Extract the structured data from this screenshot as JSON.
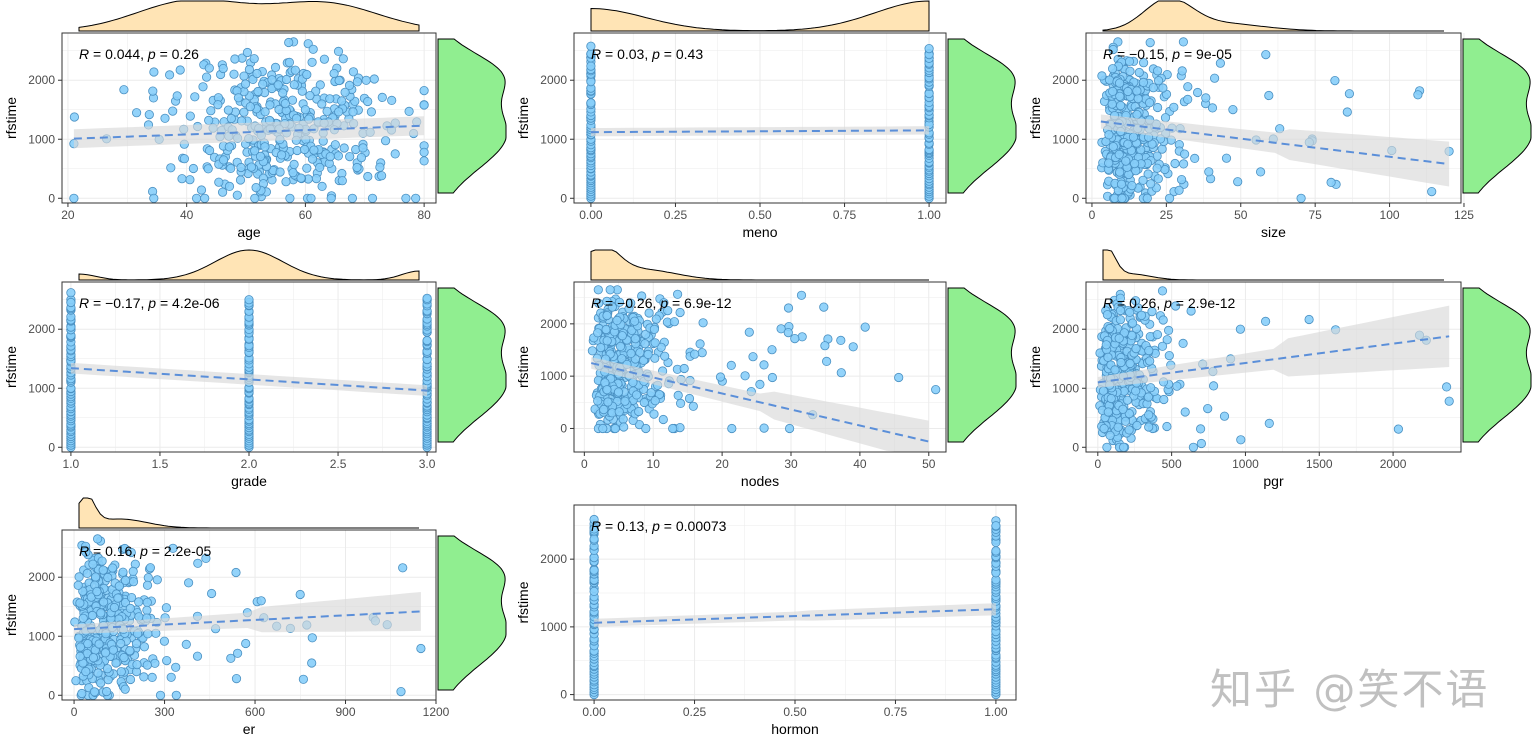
{
  "figure": {
    "y_label": "rfstime",
    "watermark": "知乎 @笑不语"
  },
  "colors": {
    "point_fill": "#87CEFA",
    "point_stroke": "#4A90C2",
    "trend_line": "#5B8FD9",
    "ribbon": "#D9D9D9",
    "top_density": "#FFE4B5",
    "right_density": "#90EE90",
    "grid": "#EBEBEB",
    "panel_border": "#333333"
  },
  "chart_data": [
    {
      "type": "scatter",
      "variable": "age",
      "xlabel": "age",
      "ylabel": "rfstime",
      "xlim": [
        19,
        82
      ],
      "ylim": [
        -80,
        2800
      ],
      "xticks": [
        20,
        40,
        60,
        80
      ],
      "xtick_labels": [
        "20",
        "40",
        "60",
        "80"
      ],
      "yticks": [
        0,
        1000,
        2000
      ],
      "ytick_labels": [
        "0",
        "1000",
        "2000"
      ],
      "annotation": {
        "r_label": "R",
        "r_value": " = 0.044, ",
        "p_label": "p",
        "p_value": " = 0.26"
      },
      "trend": {
        "x0": 21,
        "y0": 1010,
        "x1": 80,
        "y1": 1230,
        "se0": 160,
        "se1": 160
      },
      "points": {
        "kind": "normal",
        "center": 55,
        "spread": 10,
        "min": 21,
        "max": 80,
        "n": 500
      },
      "top_density": {
        "kind": "bimodal",
        "peaks": [
          [
            0.33,
            1.0,
            0.16
          ],
          [
            0.72,
            0.92,
            0.16
          ]
        ]
      },
      "right_density": {
        "kind": "bimodal",
        "peaks": [
          [
            0.38,
            1.0,
            0.22
          ],
          [
            0.78,
            0.75,
            0.14
          ]
        ]
      }
    },
    {
      "type": "scatter",
      "variable": "meno",
      "xlabel": "meno",
      "ylabel": "rfstime",
      "xlim": [
        -0.05,
        1.05
      ],
      "ylim": [
        -80,
        2800
      ],
      "xticks": [
        0,
        0.25,
        0.5,
        0.75,
        1.0
      ],
      "xtick_labels": [
        "0.00",
        "0.25",
        "0.50",
        "0.75",
        "1.00"
      ],
      "yticks": [
        0,
        1000,
        2000
      ],
      "ytick_labels": [
        "0",
        "1000",
        "2000"
      ],
      "annotation": {
        "r_label": "R",
        "r_value": " = 0.03, ",
        "p_label": "p",
        "p_value": " = 0.43"
      },
      "trend": {
        "x0": 0,
        "y0": 1120,
        "x1": 1,
        "y1": 1150,
        "se0": 70,
        "se1": 70
      },
      "points": {
        "kind": "discrete",
        "values": [
          0,
          1
        ]
      },
      "top_density": {
        "kind": "bimodal",
        "peaks": [
          [
            0.0,
            0.75,
            0.16
          ],
          [
            1.0,
            1.0,
            0.16
          ]
        ]
      },
      "right_density": {
        "kind": "bimodal",
        "peaks": [
          [
            0.38,
            1.0,
            0.22
          ],
          [
            0.78,
            0.75,
            0.14
          ]
        ]
      }
    },
    {
      "type": "scatter",
      "variable": "size",
      "xlabel": "size",
      "ylabel": "rfstime",
      "xlim": [
        -2,
        124
      ],
      "ylim": [
        -80,
        2800
      ],
      "xticks": [
        0,
        25,
        50,
        75,
        100,
        125
      ],
      "xtick_labels": [
        "0",
        "25",
        "50",
        "75",
        "100",
        "125"
      ],
      "yticks": [
        0,
        1000,
        2000
      ],
      "ytick_labels": [
        "0",
        "1000",
        "2000"
      ],
      "annotation": {
        "r_label": "R",
        "r_value": " = −0.15, ",
        "p_label": "p",
        "p_value": " = 9e-05"
      },
      "trend": {
        "x0": 3,
        "y0": 1300,
        "x1": 120,
        "y1": 580,
        "se0": 120,
        "se1": 380
      },
      "points": {
        "kind": "skew",
        "center": 25,
        "spread": 10,
        "min": 3,
        "max": 120,
        "n": 500
      },
      "top_density": {
        "kind": "skew",
        "peaks": [
          [
            0.19,
            1.0,
            0.07
          ],
          [
            0.35,
            0.25,
            0.12
          ]
        ]
      },
      "right_density": {
        "kind": "bimodal",
        "peaks": [
          [
            0.38,
            1.0,
            0.22
          ],
          [
            0.78,
            0.75,
            0.14
          ]
        ]
      }
    },
    {
      "type": "scatter",
      "variable": "grade",
      "xlabel": "grade",
      "ylabel": "rfstime",
      "xlim": [
        0.95,
        3.05
      ],
      "ylim": [
        -80,
        2800
      ],
      "xticks": [
        1.0,
        1.5,
        2.0,
        2.5,
        3.0
      ],
      "xtick_labels": [
        "1.0",
        "1.5",
        "2.0",
        "2.5",
        "3.0"
      ],
      "yticks": [
        0,
        1000,
        2000
      ],
      "ytick_labels": [
        "0",
        "1000",
        "2000"
      ],
      "annotation": {
        "r_label": "R",
        "r_value": " = −0.17, ",
        "p_label": "p",
        "p_value": " = 4.2e-06"
      },
      "trend": {
        "x0": 1,
        "y0": 1340,
        "x1": 3,
        "y1": 960,
        "se0": 90,
        "se1": 90
      },
      "points": {
        "kind": "discrete",
        "values": [
          1,
          2,
          3
        ]
      },
      "top_density": {
        "kind": "bimodal",
        "peaks": [
          [
            0.0,
            0.2,
            0.05
          ],
          [
            0.5,
            1.0,
            0.1
          ],
          [
            1.0,
            0.3,
            0.05
          ]
        ]
      },
      "right_density": {
        "kind": "bimodal",
        "peaks": [
          [
            0.38,
            1.0,
            0.22
          ],
          [
            0.78,
            0.75,
            0.14
          ]
        ]
      }
    },
    {
      "type": "scatter",
      "variable": "nodes",
      "xlabel": "nodes",
      "ylabel": "rfstime",
      "xlim": [
        -1.5,
        52.5
      ],
      "ylim": [
        -450,
        2800
      ],
      "xticks": [
        0,
        10,
        20,
        30,
        40,
        50
      ],
      "xtick_labels": [
        "0",
        "10",
        "20",
        "30",
        "40",
        "50"
      ],
      "yticks": [
        0,
        1000,
        2000
      ],
      "ytick_labels": [
        "0",
        "1000",
        "2000"
      ],
      "annotation": {
        "r_label": "R",
        "r_value": " = −0.26, ",
        "p_label": "p",
        "p_value": " = 6.9e-12"
      },
      "trend": {
        "x0": 1,
        "y0": 1250,
        "x1": 50,
        "y1": -250,
        "se0": 110,
        "se1": 400
      },
      "points": {
        "kind": "skew",
        "center": 3,
        "spread": 5,
        "min": 1,
        "max": 51,
        "n": 500
      },
      "top_density": {
        "kind": "skew",
        "peaks": [
          [
            0.03,
            1.0,
            0.05
          ],
          [
            0.15,
            0.35,
            0.1
          ]
        ]
      },
      "right_density": {
        "kind": "bimodal",
        "peaks": [
          [
            0.38,
            1.0,
            0.22
          ],
          [
            0.78,
            0.75,
            0.14
          ]
        ]
      }
    },
    {
      "type": "scatter",
      "variable": "pgr",
      "xlabel": "pgr",
      "ylabel": "rfstime",
      "xlim": [
        -80,
        2460
      ],
      "ylim": [
        -80,
        2800
      ],
      "xticks": [
        0,
        500,
        1000,
        1500,
        2000
      ],
      "xtick_labels": [
        "0",
        "500",
        "1000",
        "1500",
        "2000"
      ],
      "yticks": [
        0,
        1000,
        2000
      ],
      "ytick_labels": [
        "0",
        "1000",
        "2000"
      ],
      "annotation": {
        "r_label": "R",
        "r_value": " = 0.26, ",
        "p_label": "p",
        "p_value": " = 2.9e-12"
      },
      "trend": {
        "x0": 0,
        "y0": 1100,
        "x1": 2380,
        "y1": 1880,
        "se0": 90,
        "se1": 520
      },
      "points": {
        "kind": "skew",
        "center": 40,
        "spread": 180,
        "min": 0,
        "max": 2380,
        "n": 500
      },
      "top_density": {
        "kind": "skew",
        "peaks": [
          [
            0.01,
            1.0,
            0.025
          ],
          [
            0.08,
            0.2,
            0.06
          ]
        ]
      },
      "right_density": {
        "kind": "bimodal",
        "peaks": [
          [
            0.38,
            1.0,
            0.22
          ],
          [
            0.78,
            0.75,
            0.14
          ]
        ]
      }
    },
    {
      "type": "scatter",
      "variable": "er",
      "xlabel": "er",
      "ylabel": "rfstime",
      "xlim": [
        -40,
        1200
      ],
      "ylim": [
        -80,
        2800
      ],
      "xticks": [
        0,
        300,
        600,
        900,
        1200
      ],
      "xtick_labels": [
        "0",
        "300",
        "600",
        "900",
        "1200"
      ],
      "yticks": [
        0,
        1000,
        2000
      ],
      "ytick_labels": [
        "0",
        "1000",
        "2000"
      ],
      "annotation": {
        "r_label": "R",
        "r_value": " = 0.16, ",
        "p_label": "p",
        "p_value": " = 2.2e-05"
      },
      "trend": {
        "x0": 0,
        "y0": 1120,
        "x1": 1150,
        "y1": 1420,
        "se0": 80,
        "se1": 330
      },
      "points": {
        "kind": "skew",
        "center": 30,
        "spread": 110,
        "min": 0,
        "max": 1150,
        "n": 500
      },
      "top_density": {
        "kind": "skew",
        "peaks": [
          [
            0.02,
            1.0,
            0.025
          ],
          [
            0.12,
            0.3,
            0.08
          ]
        ]
      },
      "right_density": {
        "kind": "bimodal",
        "peaks": [
          [
            0.38,
            1.0,
            0.22
          ],
          [
            0.78,
            0.75,
            0.14
          ]
        ]
      }
    },
    {
      "type": "scatter",
      "variable": "hormon",
      "xlabel": "hormon",
      "ylabel": "rfstime",
      "xlim": [
        -0.05,
        1.05
      ],
      "ylim": [
        -80,
        2800
      ],
      "xticks": [
        0,
        0.25,
        0.5,
        0.75,
        1.0
      ],
      "xtick_labels": [
        "0.00",
        "0.25",
        "0.50",
        "0.75",
        "1.00"
      ],
      "yticks": [
        0,
        1000,
        2000
      ],
      "ytick_labels": [
        "0",
        "1000",
        "2000"
      ],
      "annotation": {
        "r_label": "R",
        "r_value": " = 0.13, ",
        "p_label": "p",
        "p_value": " = 0.00073"
      },
      "trend": {
        "x0": 0,
        "y0": 1060,
        "x1": 1,
        "y1": 1260,
        "se0": 60,
        "se1": 90
      },
      "points": {
        "kind": "discrete",
        "values": [
          0,
          1
        ]
      },
      "top_density": null,
      "right_density": null
    }
  ]
}
